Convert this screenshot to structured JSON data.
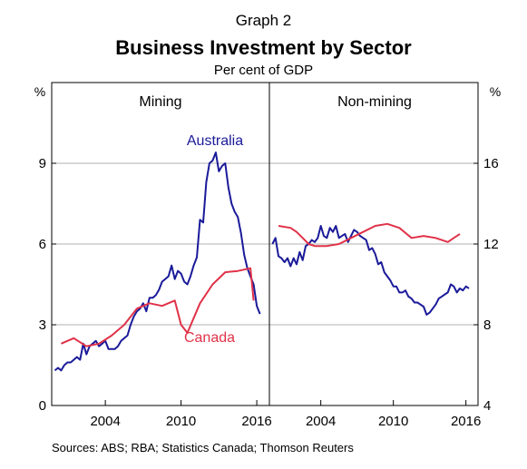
{
  "header": {
    "graph_label": "Graph 2",
    "title": "Business Investment by Sector",
    "subtitle": "Per cent of GDP"
  },
  "source": "Sources:   ABS; RBA; Statistics Canada; Thomson Reuters",
  "colors": {
    "australia": "#1a1a9a",
    "canada": "#e03248",
    "grid": "#b0b0b0",
    "frame": "#000000"
  },
  "chart_data": [
    {
      "type": "line",
      "panel": "Mining",
      "title": "Mining",
      "y_unit": "%",
      "ylim": [
        0,
        12
      ],
      "yticks": [
        0,
        3,
        6,
        9
      ],
      "xlim": [
        1999.75,
        2017.0
      ],
      "xticks": [
        2004,
        2010,
        2016
      ],
      "xtick_labels": [
        "2004",
        "2010",
        "2016"
      ],
      "grid": true,
      "series": [
        {
          "name": "Australia",
          "color": "#1a1a9a",
          "x": [
            2000.0,
            2000.25,
            2000.5,
            2000.75,
            2001.0,
            2001.25,
            2001.5,
            2001.75,
            2002.0,
            2002.25,
            2002.5,
            2002.75,
            2003.0,
            2003.25,
            2003.5,
            2003.75,
            2004.0,
            2004.25,
            2004.5,
            2004.75,
            2005.0,
            2005.25,
            2005.5,
            2005.75,
            2006.0,
            2006.25,
            2006.5,
            2006.75,
            2007.0,
            2007.25,
            2007.5,
            2007.75,
            2008.0,
            2008.25,
            2008.5,
            2008.75,
            2009.0,
            2009.25,
            2009.5,
            2009.75,
            2010.0,
            2010.25,
            2010.5,
            2010.75,
            2011.0,
            2011.25,
            2011.5,
            2011.75,
            2012.0,
            2012.25,
            2012.5,
            2012.75,
            2013.0,
            2013.25,
            2013.5,
            2013.75,
            2014.0,
            2014.25,
            2014.5,
            2014.75,
            2015.0,
            2015.25,
            2015.5,
            2015.75,
            2016.0,
            2016.25
          ],
          "values": [
            1.3,
            1.4,
            1.3,
            1.5,
            1.6,
            1.6,
            1.7,
            1.8,
            1.7,
            2.3,
            1.9,
            2.2,
            2.3,
            2.4,
            2.2,
            2.3,
            2.4,
            2.1,
            2.1,
            2.1,
            2.2,
            2.4,
            2.5,
            2.6,
            3.0,
            3.3,
            3.5,
            3.6,
            3.8,
            3.5,
            4.0,
            4.0,
            4.1,
            4.3,
            4.6,
            4.7,
            4.8,
            5.2,
            4.7,
            5.0,
            4.9,
            4.6,
            4.5,
            4.8,
            5.2,
            5.5,
            6.9,
            6.8,
            8.3,
            9.0,
            9.1,
            9.4,
            8.7,
            8.9,
            9.0,
            8.1,
            7.5,
            7.2,
            7.0,
            6.4,
            5.6,
            5.1,
            4.8,
            4.5,
            3.7,
            3.4
          ]
        },
        {
          "name": "Canada",
          "color": "#e03248",
          "x": [
            2000.5,
            2001.5,
            2002.5,
            2003.5,
            2004.5,
            2005.5,
            2006.5,
            2007.5,
            2008.5,
            2009.5,
            2010.0,
            2010.5,
            2011.5,
            2012.5,
            2013.5,
            2014.5,
            2015.5,
            2015.75
          ],
          "values": [
            2.3,
            2.5,
            2.2,
            2.3,
            2.6,
            3.0,
            3.6,
            3.8,
            3.7,
            3.9,
            3.0,
            2.7,
            3.8,
            4.5,
            4.95,
            5.0,
            5.1,
            3.9
          ]
        }
      ]
    },
    {
      "type": "line",
      "panel": "Non-mining",
      "title": "Non-mining",
      "y_unit": "%",
      "ylim": [
        4,
        20
      ],
      "yticks": [
        4,
        8,
        12,
        16
      ],
      "xlim": [
        1999.75,
        2017.0
      ],
      "xticks": [
        2004,
        2010,
        2016
      ],
      "xtick_labels": [
        "2004",
        "2010",
        "2016"
      ],
      "grid": true,
      "series": [
        {
          "name": "Australia",
          "color": "#1a1a9a",
          "x": [
            2000.0,
            2000.25,
            2000.5,
            2000.75,
            2001.0,
            2001.25,
            2001.5,
            2001.75,
            2002.0,
            2002.25,
            2002.5,
            2002.75,
            2003.0,
            2003.25,
            2003.5,
            2003.75,
            2004.0,
            2004.25,
            2004.5,
            2004.75,
            2005.0,
            2005.25,
            2005.5,
            2005.75,
            2006.0,
            2006.25,
            2006.5,
            2006.75,
            2007.0,
            2007.25,
            2007.5,
            2007.75,
            2008.0,
            2008.25,
            2008.5,
            2008.75,
            2009.0,
            2009.25,
            2009.5,
            2009.75,
            2010.0,
            2010.25,
            2010.5,
            2010.75,
            2011.0,
            2011.25,
            2011.5,
            2011.75,
            2012.0,
            2012.25,
            2012.5,
            2012.75,
            2013.0,
            2013.25,
            2013.5,
            2013.75,
            2014.0,
            2014.25,
            2014.5,
            2014.75,
            2015.0,
            2015.25,
            2015.5,
            2015.75,
            2016.0,
            2016.25
          ],
          "values": [
            12.0,
            12.3,
            11.4,
            11.3,
            11.1,
            11.3,
            10.9,
            11.3,
            11.0,
            11.6,
            11.2,
            11.9,
            12.0,
            12.2,
            12.1,
            12.3,
            12.9,
            12.4,
            12.3,
            12.8,
            12.6,
            12.9,
            12.3,
            12.4,
            12.5,
            12.1,
            12.4,
            12.7,
            12.6,
            12.4,
            12.3,
            12.2,
            11.7,
            11.8,
            11.5,
            11.0,
            11.1,
            10.6,
            10.4,
            10.2,
            9.9,
            9.9,
            9.6,
            9.6,
            9.7,
            9.4,
            9.3,
            9.1,
            9.1,
            9.0,
            8.9,
            8.5,
            8.6,
            8.8,
            9.0,
            9.3,
            9.4,
            9.5,
            9.6,
            10.0,
            9.9,
            9.6,
            9.8,
            9.7,
            9.9,
            9.8
          ]
        },
        {
          "name": "Canada",
          "color": "#e03248",
          "x": [
            2000.5,
            2001.5,
            2002.0,
            2002.5,
            2003.0,
            2003.5,
            2004.0,
            2004.5,
            2005.5,
            2006.5,
            2007.5,
            2008.5,
            2009.5,
            2010.5,
            2011.5,
            2012.5,
            2013.5,
            2014.5,
            2015.0,
            2015.5
          ],
          "values": [
            12.9,
            12.8,
            12.6,
            12.3,
            12.0,
            11.9,
            11.9,
            11.9,
            12.0,
            12.3,
            12.6,
            12.9,
            13.0,
            12.8,
            12.3,
            12.4,
            12.3,
            12.1,
            12.3,
            12.5
          ]
        }
      ]
    }
  ],
  "annotations": {
    "australia_label": "Australia",
    "canada_label": "Canada"
  }
}
